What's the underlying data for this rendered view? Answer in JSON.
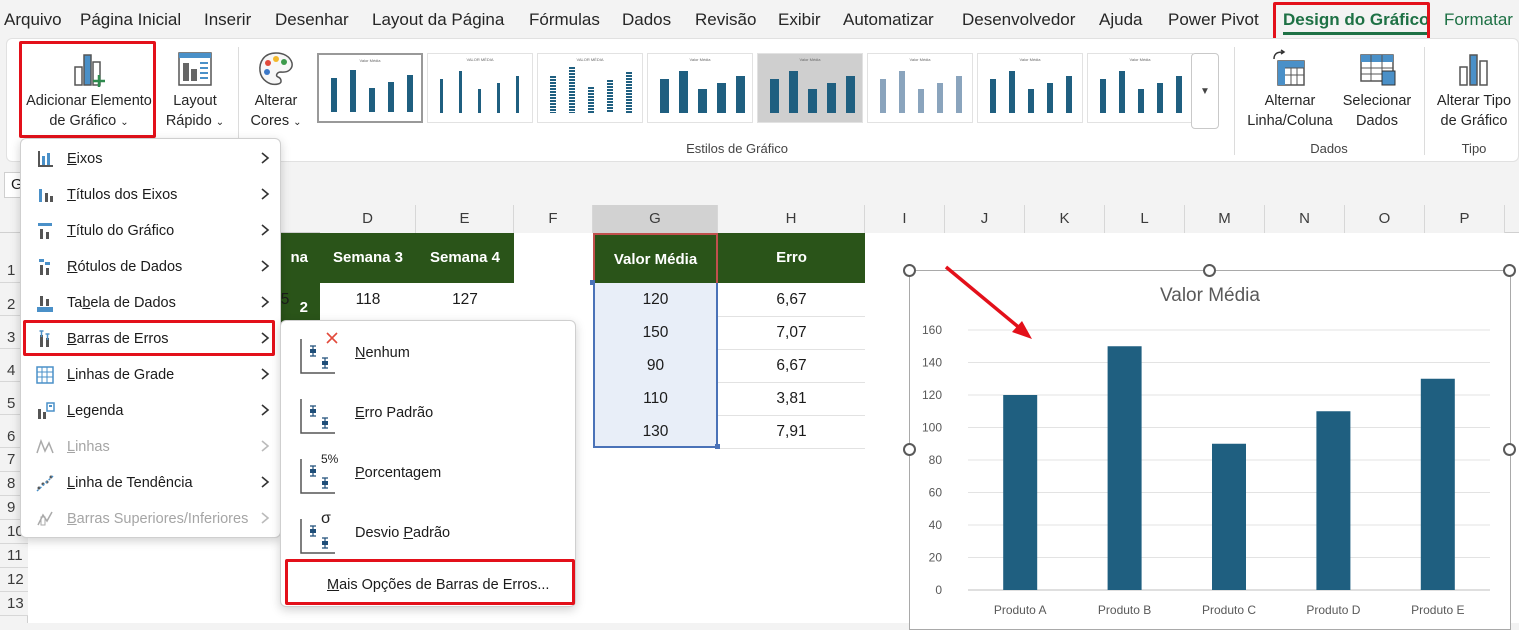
{
  "menubar": {
    "tabs": [
      "Arquivo",
      "Página Inicial",
      "Inserir",
      "Desenhar",
      "Layout da Página",
      "Fórmulas",
      "Dados",
      "Revisão",
      "Exibir",
      "Automatizar",
      "Desenvolvedor",
      "Ajuda",
      "Power Pivot",
      "Design do Gráfico",
      "Formatar"
    ],
    "active_tab": "Design do Gráfico"
  },
  "ribbon": {
    "add_element": {
      "line1": "Adicionar Elemento",
      "line2": "de Gráfico",
      "icon": "add-chart-element-icon"
    },
    "quick_layout": {
      "line1": "Layout",
      "line2": "Rápido",
      "icon": "quick-layout-icon"
    },
    "change_colors": {
      "line1": "Alterar",
      "line2": "Cores",
      "icon": "palette-icon"
    },
    "styles_group_label": "Estilos de Gráfico",
    "style_thumb_titles": [
      "Valor Média",
      "VALOR MÉDIA",
      "VALOR MÉDIA",
      "Valor Média",
      "Valor Média",
      "Valor Média",
      "Valor Média",
      "Valor Média"
    ],
    "switch_row_col": {
      "line1": "Alternar",
      "line2": "Linha/Coluna",
      "icon": "switch-row-column-icon"
    },
    "select_data": {
      "line1": "Selecionar",
      "line2": "Dados",
      "icon": "select-data-icon"
    },
    "data_group_label": "Dados",
    "change_type": {
      "line1": "Alterar Tipo",
      "line2": "de Gráfico",
      "icon": "chart-type-icon"
    },
    "type_group_label": "Tipo"
  },
  "namebox_letter": "G",
  "columns": [
    "D",
    "E",
    "F",
    "G",
    "H",
    "I",
    "J",
    "K",
    "L",
    "M",
    "N",
    "O",
    "P"
  ],
  "rows": [
    "1",
    "2",
    "3",
    "4",
    "5",
    "6",
    "7",
    "8",
    "9",
    "10",
    "11",
    "12",
    "13"
  ],
  "table1": {
    "headers": [
      "na 2",
      "Semana 3",
      "Semana 4"
    ],
    "row2": [
      "5",
      "118",
      "127"
    ]
  },
  "table2": {
    "headers": [
      "Valor Média",
      "Erro"
    ],
    "values": [
      "120",
      "150",
      "90",
      "110",
      "130"
    ],
    "errors": [
      "6,67",
      "7,07",
      "6,67",
      "3,81",
      "7,91"
    ]
  },
  "menu": {
    "items": [
      {
        "label_u": "E",
        "label_rest": "ixos",
        "icon": "axes-icon",
        "disabled": false
      },
      {
        "label_u": "T",
        "label_rest": "ítulos dos Eixos",
        "icon": "axis-titles-icon",
        "disabled": false
      },
      {
        "label_u": "T",
        "label_rest": "ítulo do Gráfico",
        "icon": "chart-title-icon",
        "disabled": false
      },
      {
        "label_u": "R",
        "label_rest": "ótulos de Dados",
        "icon": "data-labels-icon",
        "disabled": false
      },
      {
        "label_u": "",
        "label_pre": "Ta",
        "label_mid": "b",
        "label_rest": "ela de Dados",
        "icon": "data-table-icon",
        "disabled": false
      },
      {
        "label_u": "B",
        "label_rest": "arras de Erros",
        "icon": "error-bars-icon",
        "disabled": false
      },
      {
        "label_u": "L",
        "label_rest": "inhas de Grade",
        "icon": "gridlines-icon",
        "disabled": false
      },
      {
        "label_u": "L",
        "label_rest": "egenda",
        "icon": "legend-icon",
        "disabled": false
      },
      {
        "label_u": "L",
        "label_rest": "inhas",
        "icon": "lines-icon",
        "disabled": true
      },
      {
        "label_u": "L",
        "label_rest": "inha de Tendência",
        "icon": "trendline-icon",
        "disabled": false
      },
      {
        "label_u": "B",
        "label_rest": "arras Superiores/Inferiores",
        "icon": "up-down-bars-icon",
        "disabled": true
      }
    ]
  },
  "submenu": {
    "items": [
      {
        "label_u": "N",
        "label_rest": "enhum",
        "icon": "error-bars-none-icon"
      },
      {
        "label_u": "E",
        "label_rest": "rro Padrão",
        "icon": "error-bars-standard-error-icon"
      },
      {
        "label_u": "P",
        "label_rest": "orcentagem",
        "icon": "error-bars-percentage-icon",
        "badge": "5%"
      },
      {
        "label_pre": "Desvio ",
        "label_u": "P",
        "label_rest": "adrão",
        "icon": "error-bars-std-dev-icon",
        "badge": "σ"
      }
    ],
    "more_pre": "",
    "more_u": "M",
    "more_rest": "ais Opções de Barras de Erros..."
  },
  "chart_data": {
    "type": "bar",
    "title": "Valor Média",
    "categories": [
      "Produto A",
      "Produto B",
      "Produto C",
      "Produto D",
      "Produto E"
    ],
    "values": [
      120,
      150,
      90,
      110,
      130
    ],
    "yticks": [
      "0",
      "20",
      "40",
      "60",
      "80",
      "100",
      "120",
      "140",
      "160"
    ],
    "ylim": [
      0,
      160
    ],
    "grid": true,
    "bar_color": "#1f5f80"
  },
  "colors": {
    "accent": "#1e7145",
    "header_fill": "#2a5419",
    "highlight": "#e3101a"
  }
}
